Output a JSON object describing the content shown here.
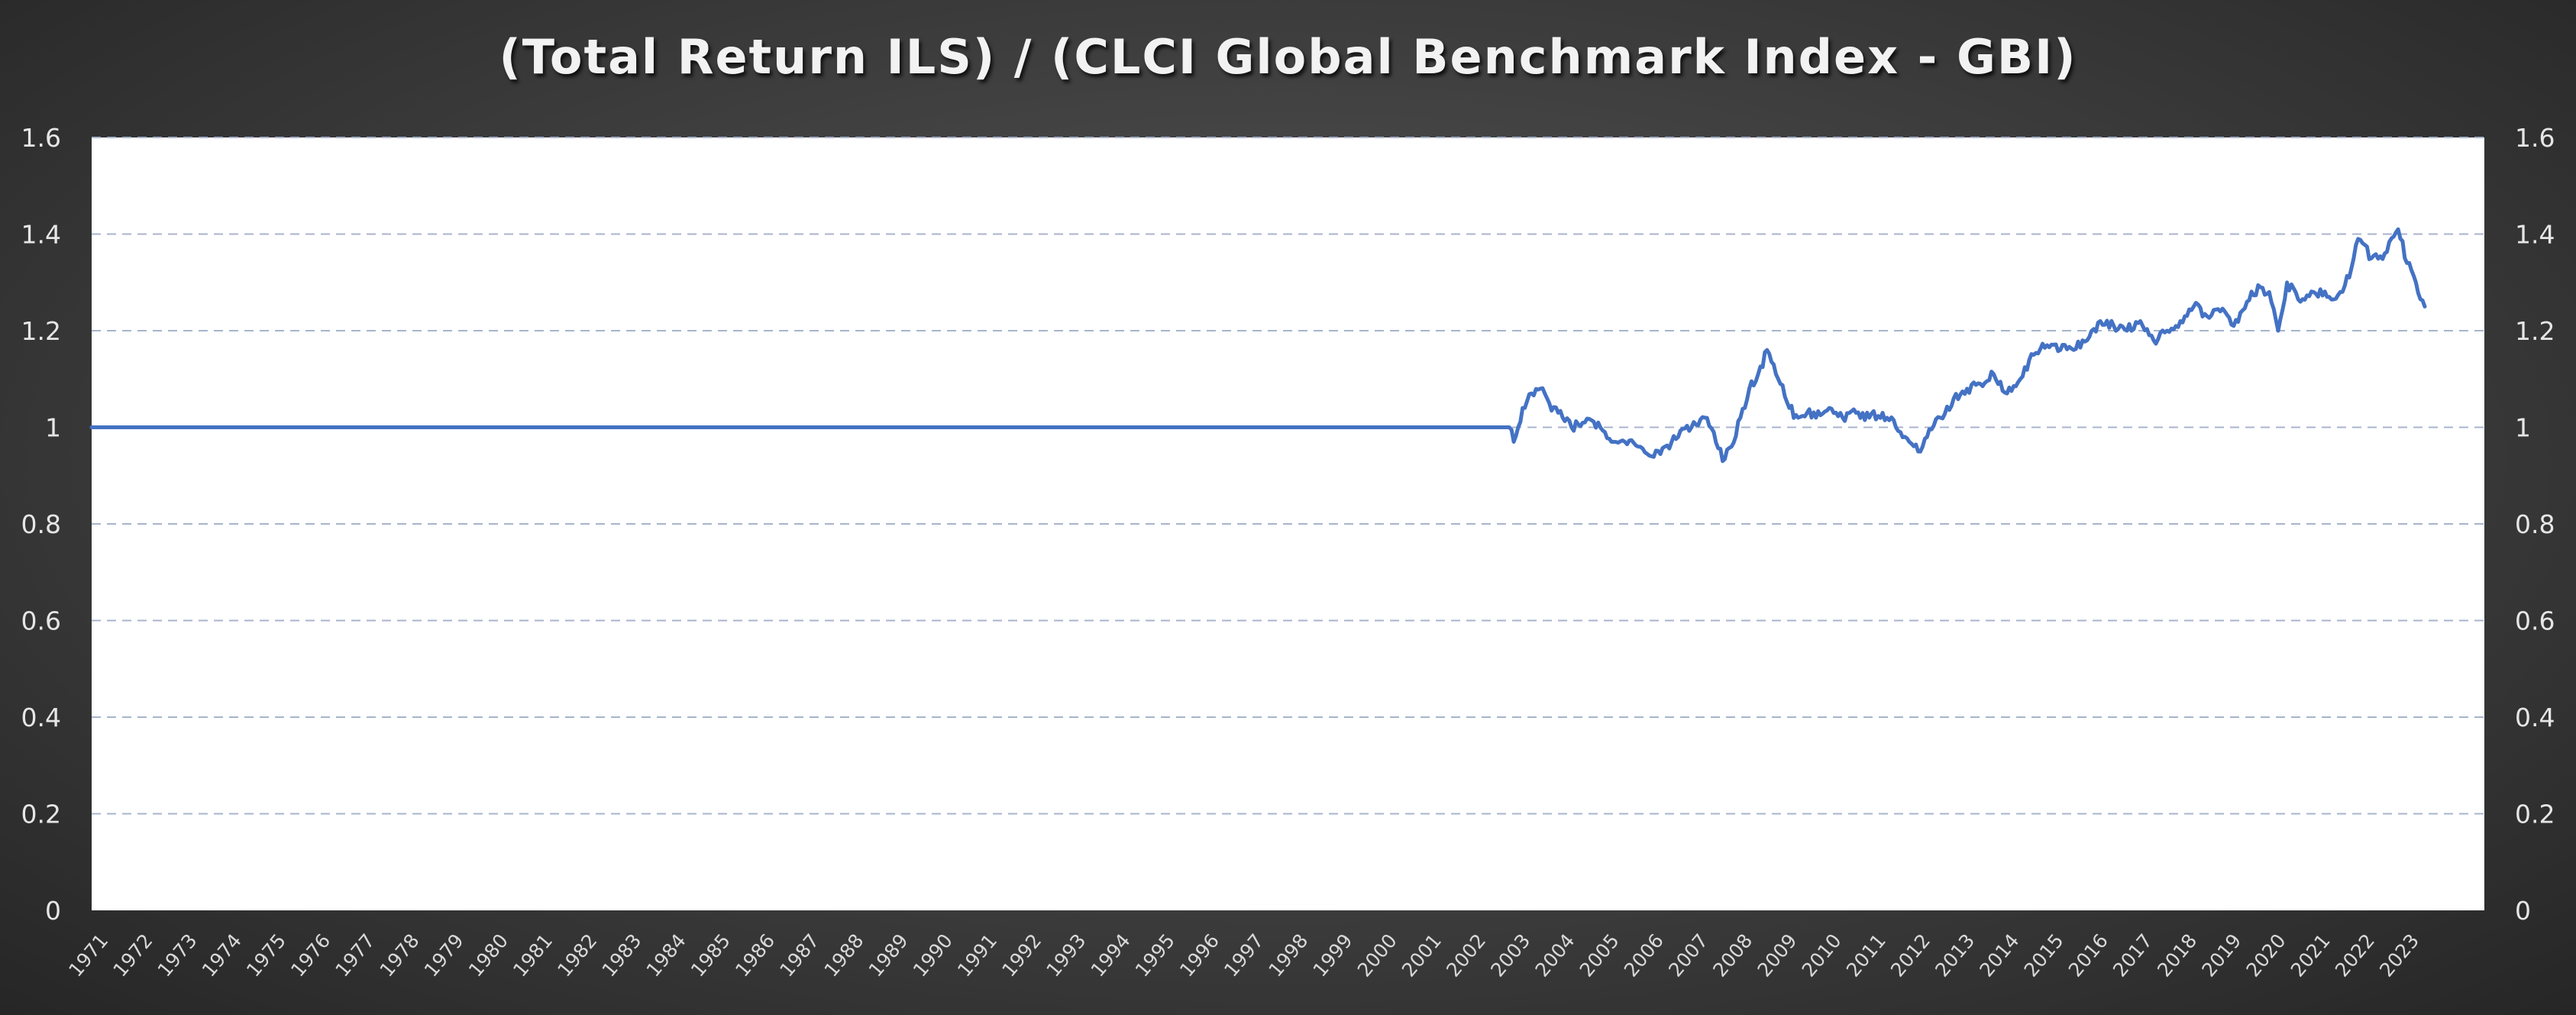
{
  "chart_data": {
    "type": "line",
    "title": "(Total Return ILS) / (CLCI Global Benchmark Index - GBI)",
    "xlabel": "",
    "ylabel": "",
    "ylim": [
      0,
      1.6
    ],
    "yticks": [
      "0",
      "0.2",
      "0.4",
      "0.6",
      "0.8",
      "1",
      "1.2",
      "1.4",
      "1.6"
    ],
    "secondary_yticks": [
      "0",
      "0.2",
      "0.4",
      "0.6",
      "0.8",
      "1",
      "1.2",
      "1.4",
      "1.6"
    ],
    "grid": {
      "horizontal": true,
      "style": "dashed",
      "color": "#a8b4cc"
    },
    "legend": null,
    "categories": [
      "1971",
      "1972",
      "1973",
      "1974",
      "1975",
      "1976",
      "1977",
      "1978",
      "1979",
      "1980",
      "1981",
      "1982",
      "1983",
      "1984",
      "1985",
      "1986",
      "1987",
      "1988",
      "1989",
      "1990",
      "1991",
      "1992",
      "1993",
      "1994",
      "1995",
      "1996",
      "1997",
      "1998",
      "1999",
      "2000",
      "2001",
      "2002",
      "2003",
      "2004",
      "2005",
      "2006",
      "2007",
      "2008",
      "2009",
      "2010",
      "2011",
      "2012",
      "2013",
      "2014",
      "2015",
      "2016",
      "2017",
      "2018",
      "2019",
      "2020",
      "2021",
      "2022",
      "2023"
    ],
    "series": [
      {
        "name": "Total Return ILS / CLCI GBI",
        "color": "#4472c4",
        "x": [
          1971.0,
          2002.9,
          2003.0,
          2003.1,
          2003.2,
          2003.4,
          2003.6,
          2003.8,
          2004.0,
          2004.3,
          2004.6,
          2004.9,
          2005.2,
          2005.5,
          2005.8,
          2006.1,
          2006.4,
          2006.7,
          2007.0,
          2007.3,
          2007.5,
          2007.7,
          2007.9,
          2008.1,
          2008.3,
          2008.5,
          2008.7,
          2008.9,
          2009.0,
          2009.2,
          2009.4,
          2009.6,
          2009.8,
          2010.1,
          2010.4,
          2010.7,
          2011.0,
          2011.3,
          2011.6,
          2011.9,
          2012.1,
          2012.3,
          2012.6,
          2012.9,
          2013.2,
          2013.5,
          2013.8,
          2014.1,
          2014.4,
          2014.7,
          2015.0,
          2015.3,
          2015.6,
          2015.9,
          2016.2,
          2016.5,
          2016.8,
          2017.1,
          2017.4,
          2017.7,
          2018.0,
          2018.3,
          2018.6,
          2018.9,
          2019.2,
          2019.5,
          2019.8,
          2020.0,
          2020.2,
          2020.4,
          2020.7,
          2021.0,
          2021.3,
          2021.6,
          2021.8,
          2022.0,
          2022.3,
          2022.6,
          2022.9,
          2023.1,
          2023.3,
          2023.5
        ],
        "values": [
          1.0,
          1.0,
          0.97,
          1.0,
          1.04,
          1.07,
          1.08,
          1.05,
          1.03,
          1.0,
          1.01,
          1.01,
          0.97,
          0.97,
          0.96,
          0.94,
          0.96,
          0.98,
          1.0,
          1.02,
          0.99,
          0.93,
          0.96,
          1.02,
          1.08,
          1.11,
          1.16,
          1.11,
          1.09,
          1.04,
          1.02,
          1.03,
          1.02,
          1.04,
          1.02,
          1.03,
          1.02,
          1.03,
          1.0,
          0.97,
          0.95,
          0.98,
          1.02,
          1.06,
          1.08,
          1.09,
          1.11,
          1.07,
          1.1,
          1.15,
          1.17,
          1.16,
          1.16,
          1.18,
          1.22,
          1.21,
          1.2,
          1.22,
          1.18,
          1.2,
          1.22,
          1.25,
          1.23,
          1.24,
          1.21,
          1.26,
          1.29,
          1.28,
          1.2,
          1.3,
          1.26,
          1.28,
          1.27,
          1.28,
          1.31,
          1.39,
          1.35,
          1.36,
          1.41,
          1.34,
          1.3,
          1.25
        ]
      }
    ]
  }
}
